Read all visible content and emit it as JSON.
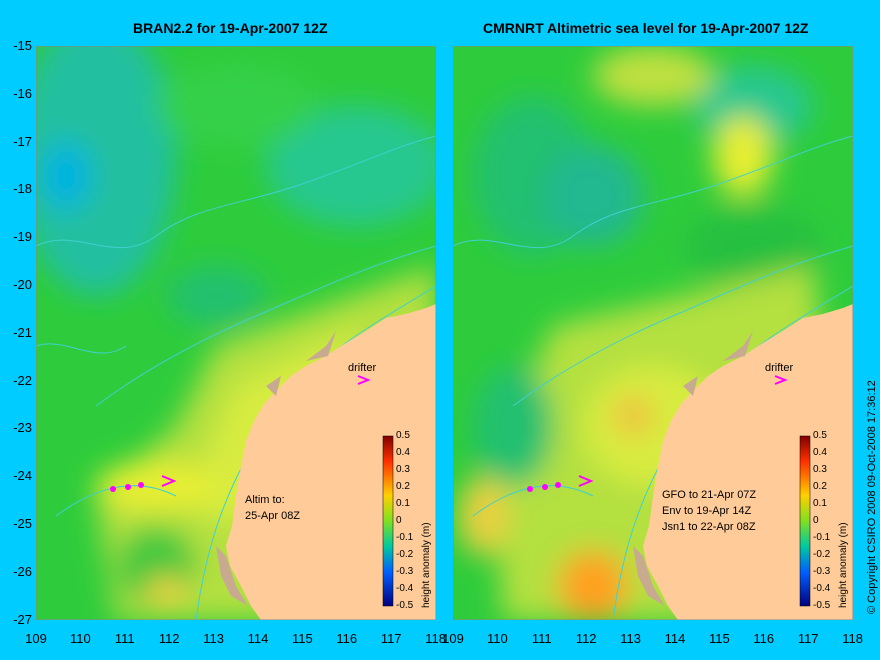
{
  "left_map": {
    "title": "BRAN2.2 for 19-Apr-2007 12Z",
    "drifter_label": "drifter",
    "altim_lines": [
      "Altim to:",
      "25-Apr 08Z"
    ]
  },
  "right_map": {
    "title": "CMRNRT Altimetric sea level  for 19-Apr-2007 12Z",
    "drifter_label": "drifter",
    "altim_lines": [
      "GFO to 21-Apr 07Z",
      "Env to 19-Apr 14Z",
      "Jsn1 to 22-Apr 08Z"
    ]
  },
  "axes": {
    "lat_ticks": [
      "-15",
      "-16",
      "-17",
      "-18",
      "-19",
      "-20",
      "-21",
      "-22",
      "-23",
      "-24",
      "-25",
      "-26",
      "-27"
    ],
    "lon_ticks": [
      "109",
      "110",
      "111",
      "112",
      "113",
      "114",
      "115",
      "116",
      "117",
      "118"
    ]
  },
  "colorbar": {
    "label": "height anomaly (m)",
    "ticks": [
      "0.5",
      "0.4",
      "0.3",
      "0.2",
      "0.1",
      "0",
      "-0.1",
      "-0.2",
      "-0.3",
      "-0.4",
      "-0.5"
    ]
  },
  "copyright": "© Copyright CSIRO 2008   09-Oct-2008 17:36:12",
  "colors": {
    "background": "#00ccff",
    "land": "#ffcc99",
    "reef": "#c8aa90",
    "drifter": "#ff00ff"
  }
}
